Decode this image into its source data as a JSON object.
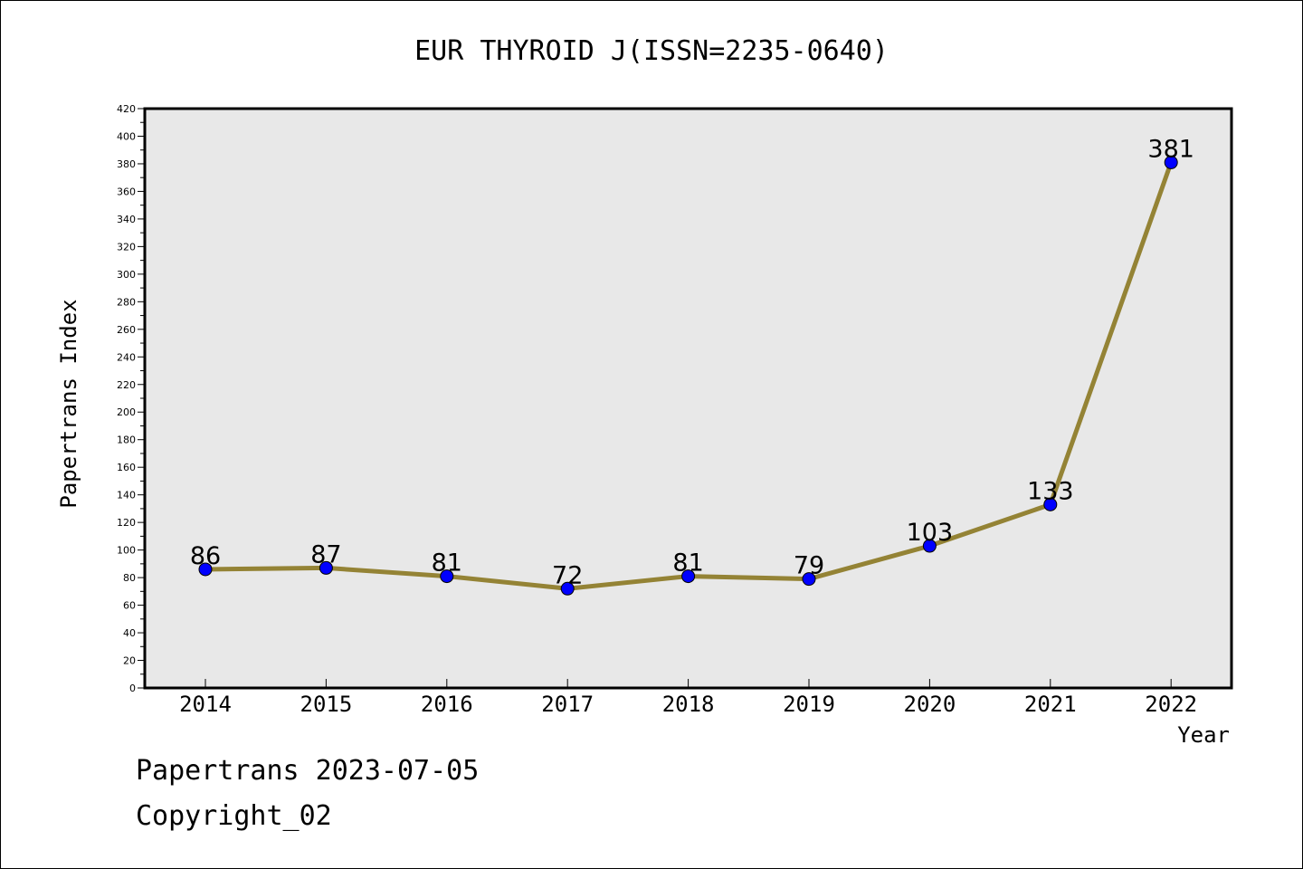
{
  "chart_data": {
    "type": "line",
    "title": "EUR THYROID J(ISSN=2235-0640)",
    "xlabel": "Year",
    "ylabel": "Papertrans Index",
    "categories": [
      "2014",
      "2015",
      "2016",
      "2017",
      "2018",
      "2019",
      "2020",
      "2021",
      "2022"
    ],
    "series": [
      {
        "values": [
          86,
          87,
          81,
          72,
          81,
          79,
          103,
          133,
          381
        ]
      }
    ],
    "ylim": [
      0,
      420
    ],
    "ytick_step": 20,
    "grid": false,
    "data_labels": true,
    "colors": {
      "line": "#948335",
      "marker": "#0000ff",
      "plot_bg": "#e8e8e8"
    }
  },
  "footer": {
    "line1": "Papertrans 2023-07-05",
    "line2": "Copyright_02"
  }
}
